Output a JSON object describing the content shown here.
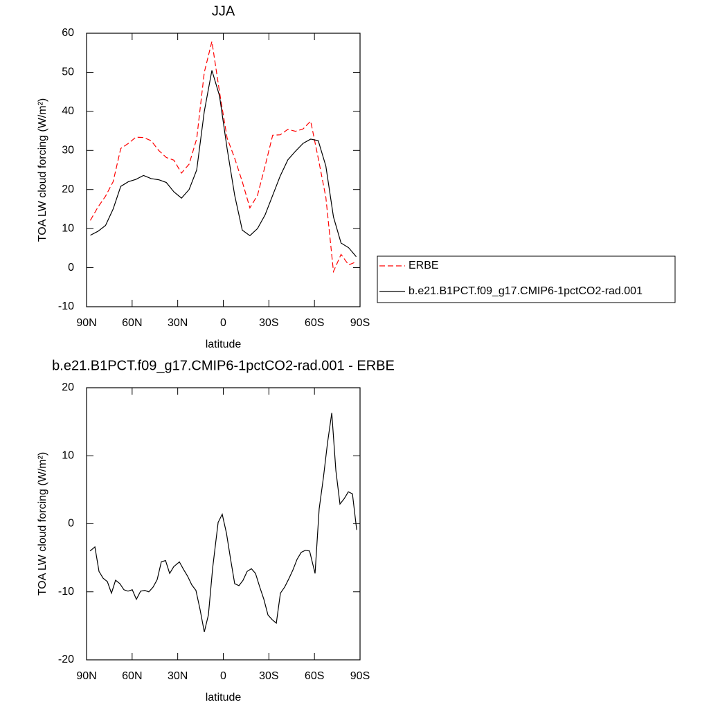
{
  "chart_data": [
    {
      "type": "line",
      "title": "JJA",
      "xlabel": "latitude",
      "ylabel": "TOA LW cloud forcing (W/m²)",
      "x": [
        87.5,
        82.5,
        77.5,
        72.5,
        67.5,
        62.5,
        57.5,
        52.5,
        47.5,
        42.5,
        37.5,
        32.5,
        27.5,
        22.5,
        17.5,
        12.5,
        7.5,
        2.5,
        -2.5,
        -7.5,
        -12.5,
        -17.5,
        -22.5,
        -27.5,
        -32.5,
        -37.5,
        -42.5,
        -47.5,
        -52.5,
        -57.5,
        -62.5,
        -67.5,
        -72.5,
        -77.5,
        -82.5,
        -87.5
      ],
      "series": [
        {
          "name": "ERBE",
          "color": "#ff0000",
          "linestyle": "dashed",
          "values": [
            12.1,
            15.5,
            18.3,
            22,
            30.5,
            31.8,
            33.4,
            33.3,
            32.5,
            30,
            28.2,
            27.5,
            24.2,
            26.5,
            33,
            50,
            57.9,
            45,
            33.2,
            28,
            22,
            15.3,
            18.5,
            26,
            33.9,
            34,
            35.4,
            34.9,
            35.5,
            37.5,
            28,
            18,
            -1,
            3.4,
            0.7,
            1.5
          ]
        },
        {
          "name": "b.e21.B1PCT.f09_g17.CMIP6-1pctCO2-rad.001",
          "color": "#000000",
          "linestyle": "solid",
          "values": [
            8.3,
            9.3,
            10.8,
            15,
            20.8,
            22,
            22.6,
            23.6,
            22.8,
            22.5,
            21.8,
            19.4,
            17.8,
            20,
            25,
            40,
            50.5,
            44,
            30.5,
            18.5,
            9.6,
            8.2,
            10,
            13.5,
            18.5,
            23.5,
            27.6,
            29.8,
            31.8,
            32.9,
            32.5,
            26,
            13,
            6.3,
            5.1,
            2.8
          ]
        }
      ],
      "xlim": [
        90,
        -90
      ],
      "xticks": [
        {
          "value": 90,
          "label": "90N"
        },
        {
          "value": 60,
          "label": "60N"
        },
        {
          "value": 30,
          "label": "30N"
        },
        0,
        {
          "value": -30,
          "label": "30S"
        },
        {
          "value": -60,
          "label": "60S"
        },
        {
          "value": -90,
          "label": "90S"
        }
      ],
      "ylim": [
        -10,
        60
      ],
      "yticks": [
        -10,
        0,
        10,
        20,
        30,
        40,
        50,
        60
      ],
      "legend": "right"
    },
    {
      "type": "line",
      "title": "b.e21.B1PCT.f09_g17.CMIP6-1pctCO2-rad.001 - ERBE",
      "xlabel": "latitude",
      "ylabel": "TOA LW cloud forcing (W/m²)",
      "x": [
        87.7,
        84.5,
        81.8,
        79.1,
        76.3,
        73.6,
        70.9,
        68.1,
        65.4,
        62.7,
        59.9,
        57.2,
        54.4,
        51.7,
        49.0,
        46.2,
        43.5,
        40.8,
        38.0,
        35.3,
        32.6,
        28.9,
        26.2,
        23.5,
        20.7,
        18.0,
        15.3,
        12.5,
        9.8,
        7.0,
        3.4,
        0.7,
        -2.1,
        -4.8,
        -7.5,
        -10.3,
        -13.0,
        -15.7,
        -18.5,
        -21.2,
        -24.0,
        -26.7,
        -29.4,
        -32.2,
        -34.9,
        -37.6,
        -40.4,
        -43.1,
        -45.8,
        -48.6,
        -51.3,
        -54.0,
        -56.8,
        -60.4,
        -63.1,
        -65.9,
        -68.6,
        -71.4,
        -74.1,
        -76.8,
        -79.6,
        -82.3,
        -85.0,
        -87.8
      ],
      "series": [
        {
          "color": "#000000",
          "linestyle": "solid",
          "values": [
            -4,
            -3.4,
            -7,
            -8,
            -8.5,
            -10.2,
            -8.3,
            -8.8,
            -9.7,
            -9.9,
            -9.7,
            -11.1,
            -9.9,
            -9.8,
            -10,
            -9.3,
            -8.2,
            -5.6,
            -5.4,
            -7.3,
            -6.3,
            -5.6,
            -6.7,
            -7.7,
            -9,
            -9.8,
            -12.6,
            -15.9,
            -13.4,
            -6.5,
            0.2,
            1.4,
            -1.4,
            -5.2,
            -8.8,
            -9.1,
            -8.3,
            -7,
            -6.6,
            -7.3,
            -9.3,
            -11.1,
            -13.4,
            -14.1,
            -14.6,
            -10.2,
            -9.3,
            -8.1,
            -6.8,
            -5.2,
            -4.2,
            -3.9,
            -4,
            -7.3,
            2.2,
            6.8,
            11.9,
            16.3,
            7.8,
            2.9,
            3.7,
            4.7,
            4.4,
            -0.9
          ]
        }
      ],
      "xlim": [
        90,
        -90
      ],
      "xticks": [
        {
          "value": 90,
          "label": "90N"
        },
        {
          "value": 60,
          "label": "60N"
        },
        {
          "value": 30,
          "label": "30N"
        },
        0,
        {
          "value": -30,
          "label": "30S"
        },
        {
          "value": -60,
          "label": "60S"
        },
        {
          "value": -90,
          "label": "90S"
        }
      ],
      "ylim": [
        -20,
        20
      ],
      "yticks": [
        -20,
        -10,
        0,
        10,
        20
      ]
    }
  ]
}
